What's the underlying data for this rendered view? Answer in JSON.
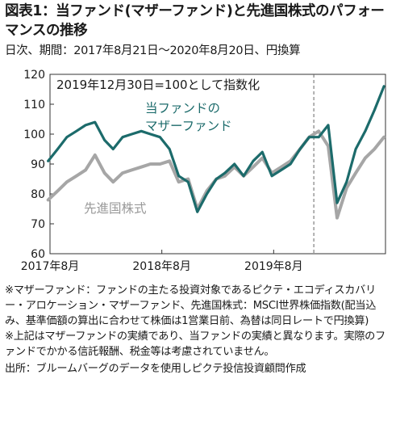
{
  "header": {
    "title": "図表1：当ファンド(マザーファンド)と先進国株式のパフォーマンスの推移",
    "subtitle": "日次、期間：2017年8月21日～2020年8月20日、円換算"
  },
  "chart_data": {
    "type": "line",
    "annotation": "2019年12月30日=100として指数化",
    "x_ticks": [
      "2017年8月",
      "2018年8月",
      "2019年8月"
    ],
    "ylim": [
      60,
      120
    ],
    "y_ticks": [
      60,
      70,
      80,
      90,
      100,
      110,
      120
    ],
    "grid": false,
    "reference_date": "2019-12-30",
    "series": [
      {
        "name": "当ファンドのマザーファンド",
        "label_lines": [
          "当ファンドの",
          "マザーファンド"
        ],
        "color": "#1c6b6b",
        "x": [
          "2017-08",
          "2017-09",
          "2017-10",
          "2017-11",
          "2017-12",
          "2018-01",
          "2018-02",
          "2018-03",
          "2018-04",
          "2018-05",
          "2018-06",
          "2018-07",
          "2018-08",
          "2018-09",
          "2018-10",
          "2018-11",
          "2018-12",
          "2019-01",
          "2019-02",
          "2019-03",
          "2019-04",
          "2019-05",
          "2019-06",
          "2019-07",
          "2019-08",
          "2019-09",
          "2019-10",
          "2019-11",
          "2019-12",
          "2020-01",
          "2020-02",
          "2020-03",
          "2020-04",
          "2020-05",
          "2020-06",
          "2020-07",
          "2020-08"
        ],
        "values": [
          91,
          95,
          99,
          101,
          103,
          104,
          98,
          95,
          99,
          100,
          101,
          100,
          99,
          95,
          86,
          84,
          74,
          80,
          85,
          87,
          90,
          86,
          91,
          94,
          86,
          88,
          90,
          95,
          99,
          99,
          103,
          77,
          84,
          95,
          101,
          108,
          116
        ]
      },
      {
        "name": "先進国株式",
        "label_lines": [
          "先進国株式"
        ],
        "color": "#a6a6a6",
        "x": [
          "2017-08",
          "2017-09",
          "2017-10",
          "2017-11",
          "2017-12",
          "2018-01",
          "2018-02",
          "2018-03",
          "2018-04",
          "2018-05",
          "2018-06",
          "2018-07",
          "2018-08",
          "2018-09",
          "2018-10",
          "2018-11",
          "2018-12",
          "2019-01",
          "2019-02",
          "2019-03",
          "2019-04",
          "2019-05",
          "2019-06",
          "2019-07",
          "2019-08",
          "2019-09",
          "2019-10",
          "2019-11",
          "2019-12",
          "2020-01",
          "2020-02",
          "2020-03",
          "2020-04",
          "2020-05",
          "2020-06",
          "2020-07",
          "2020-08"
        ],
        "values": [
          78,
          81,
          84,
          86,
          88,
          93,
          87,
          84,
          87,
          88,
          89,
          90,
          90,
          91,
          84,
          85,
          75,
          81,
          85,
          86,
          89,
          86,
          89,
          92,
          87,
          89,
          91,
          95,
          99,
          101,
          96,
          72,
          82,
          87,
          92,
          95,
          99
        ]
      }
    ]
  },
  "notes": [
    "※マザーファンド：ファンドの主たる投資対象であるピクテ・エコディスカバリー・アロケーション・マザーファンド、先進国株式：MSCI世界株価指数(配当込み、基準価額の算出に合わせて株価は1営業日前、為替は同日レートで円換算)",
    "※上記はマザーファンドの実績であり、当ファンドの実績と異なります。実際のファンドでかかる信託報酬、税金等は考慮されていません。",
    "出所：ブルームバーグのデータを使用しピクテ投信投資顧問作成"
  ]
}
